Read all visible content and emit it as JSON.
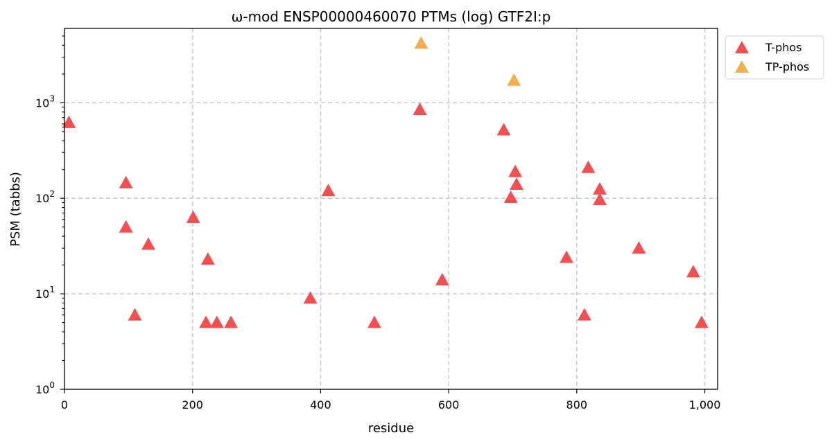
{
  "chart_data": {
    "type": "scatter",
    "title": "ω-mod ENSP00000460070 PTMs (log) GTF2I:p",
    "xlabel": "residue",
    "ylabel": "PSM (tabbs)",
    "xlim": [
      0,
      1020
    ],
    "ylim": [
      1,
      6000
    ],
    "yscale": "log",
    "grid": true,
    "legend_position": "outside-top-right",
    "x_ticks": [
      {
        "value": 0,
        "label": "0"
      },
      {
        "value": 200,
        "label": "200"
      },
      {
        "value": 400,
        "label": "400"
      },
      {
        "value": 600,
        "label": "600"
      },
      {
        "value": 800,
        "label": "800"
      },
      {
        "value": 1000,
        "label": "1,000"
      }
    ],
    "y_ticks": [
      {
        "value": 1,
        "base": "10",
        "exp": "0"
      },
      {
        "value": 10,
        "base": "10",
        "exp": "1"
      },
      {
        "value": 100,
        "base": "10",
        "exp": "2"
      },
      {
        "value": 1000,
        "base": "10",
        "exp": "3"
      }
    ],
    "series": [
      {
        "name": "T-phos",
        "color": "#f05052",
        "marker": "triangle",
        "points": [
          {
            "x": 7,
            "y": 620
          },
          {
            "x": 96,
            "y": 145
          },
          {
            "x": 96,
            "y": 50
          },
          {
            "x": 110,
            "y": 6
          },
          {
            "x": 131,
            "y": 33
          },
          {
            "x": 201,
            "y": 63
          },
          {
            "x": 221,
            "y": 5
          },
          {
            "x": 224,
            "y": 23
          },
          {
            "x": 238,
            "y": 5
          },
          {
            "x": 260,
            "y": 5
          },
          {
            "x": 384,
            "y": 9
          },
          {
            "x": 412,
            "y": 120
          },
          {
            "x": 484,
            "y": 5
          },
          {
            "x": 555,
            "y": 850
          },
          {
            "x": 590,
            "y": 14
          },
          {
            "x": 686,
            "y": 520
          },
          {
            "x": 697,
            "y": 102
          },
          {
            "x": 704,
            "y": 190
          },
          {
            "x": 706,
            "y": 140
          },
          {
            "x": 784,
            "y": 24
          },
          {
            "x": 812,
            "y": 6
          },
          {
            "x": 818,
            "y": 210
          },
          {
            "x": 836,
            "y": 125
          },
          {
            "x": 836,
            "y": 97
          },
          {
            "x": 897,
            "y": 30
          },
          {
            "x": 982,
            "y": 17
          },
          {
            "x": 995,
            "y": 5
          }
        ]
      },
      {
        "name": "TP-phos",
        "color": "#f0b050",
        "marker": "triangle",
        "points": [
          {
            "x": 557,
            "y": 4200
          },
          {
            "x": 702,
            "y": 1720
          }
        ]
      }
    ]
  }
}
